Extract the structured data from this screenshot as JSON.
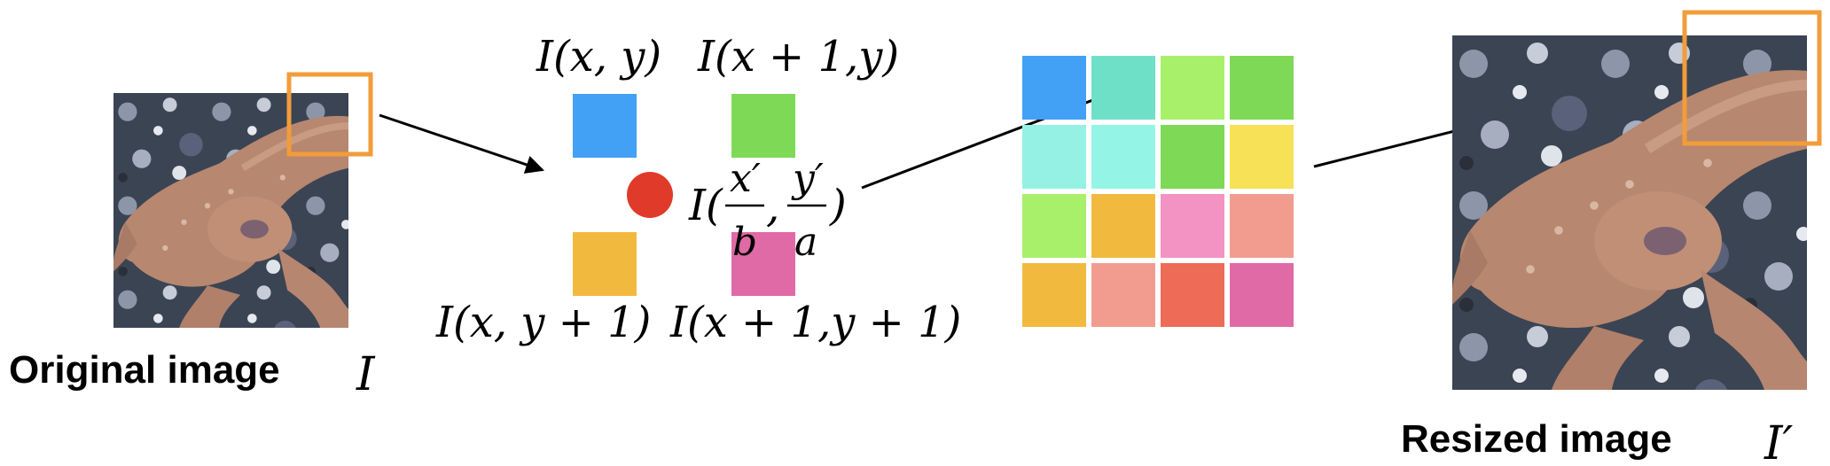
{
  "original": {
    "label": "Original image",
    "symbol": "I",
    "highlight_color": "#F29C3A"
  },
  "resized": {
    "label": "Resized image",
    "symbol": "I′",
    "highlight_color": "#F29C3A"
  },
  "neighbors": {
    "top_left": {
      "label": "I(x, y)",
      "color": "#42A0F5"
    },
    "top_right": {
      "label": "I(x + 1,y)",
      "color": "#7ED957"
    },
    "bottom_left": {
      "label": "I(x, y + 1)",
      "color": "#F1BA3F"
    },
    "bottom_right": {
      "label": "I(x + 1,y + 1)",
      "color": "#E06AA6"
    }
  },
  "interpolated": {
    "prefix": "I(",
    "num_x": "x′",
    "den_x": "b",
    "comma": ",",
    "num_y": "y′",
    "den_y": "a",
    "suffix": ")",
    "color": "#E03A2A"
  },
  "grid": {
    "rows": 4,
    "cols": 4,
    "colors": [
      "#42A0F5",
      "#6EE0C8",
      "#A8F06A",
      "#7ED957",
      "#94F1E3",
      "#94F5E6",
      "#7ED957",
      "#F7E157",
      "#A8F06A",
      "#F1BA3F",
      "#F293C3",
      "#F29C90",
      "#F1BA3F",
      "#F29C90",
      "#EE6B57",
      "#E06AA6"
    ]
  },
  "icons": {
    "original_photo": "salamander-photo",
    "resized_photo": "salamander-photo"
  }
}
